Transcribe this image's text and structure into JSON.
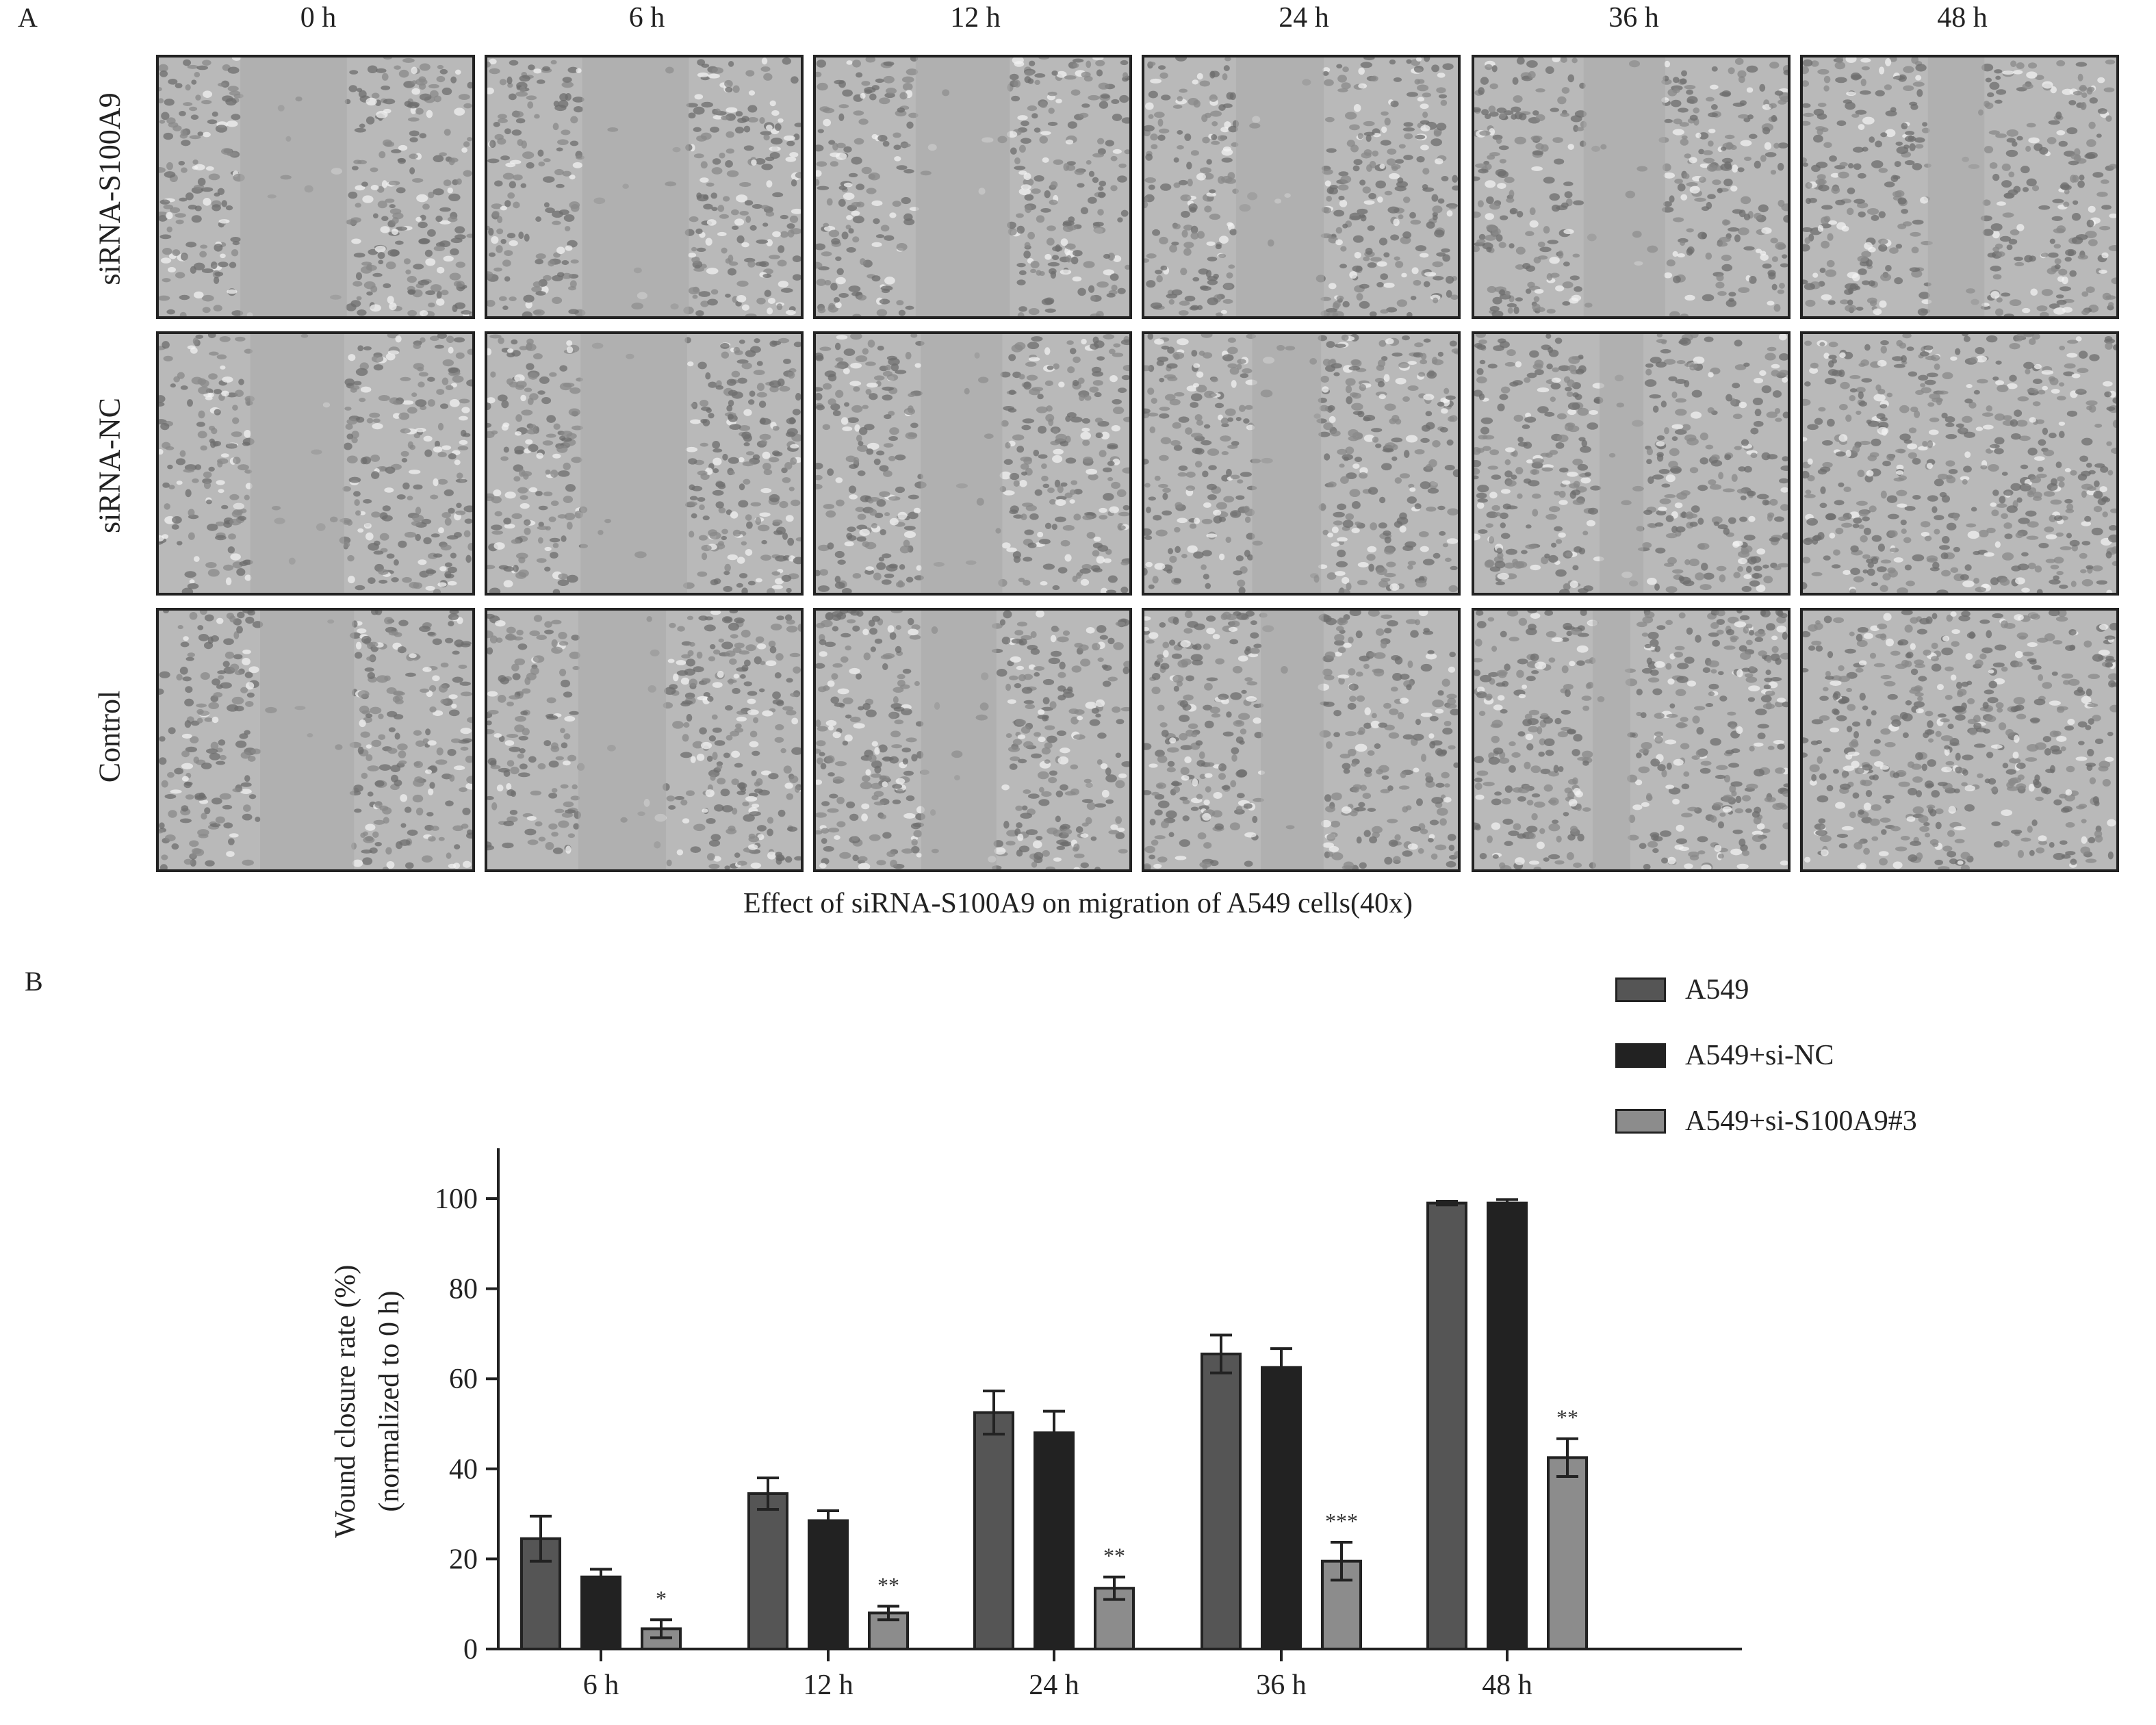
{
  "figure": {
    "panel_a_label": "A",
    "panel_b_label": "B",
    "columns": [
      "0 h",
      "6 h",
      "12 h",
      "24 h",
      "36 h",
      "48 h"
    ],
    "rows": [
      "siRNA-S100A9",
      "siRNA-NC",
      "Control"
    ],
    "caption": "Effect of siRNA-S100A9 on migration of A549 cells(40x)",
    "wound_gap_fraction": [
      [
        0.34,
        0.34,
        0.3,
        0.28,
        0.26,
        0.18
      ],
      [
        0.3,
        0.34,
        0.26,
        0.22,
        0.14,
        0.0
      ],
      [
        0.3,
        0.28,
        0.24,
        0.2,
        0.12,
        0.0
      ]
    ]
  },
  "chart_data": {
    "type": "bar",
    "categories": [
      "6 h",
      "12 h",
      "24 h",
      "36 h",
      "48 h"
    ],
    "ylabel_line1": "Wound closure rate (%)",
    "ylabel_line2": "(normalized to 0 h)",
    "ylim": [
      0,
      110
    ],
    "yticks": [
      0,
      20,
      40,
      60,
      80,
      100
    ],
    "legend_position": "top-right",
    "series": [
      {
        "name": "A549",
        "color": "#555555",
        "values": [
          24.5,
          34.5,
          52.5,
          65.5,
          99.0
        ],
        "errors": [
          5.0,
          3.5,
          4.8,
          4.2,
          0.4
        ],
        "significance": [
          "",
          "",
          "",
          "",
          ""
        ]
      },
      {
        "name": "A549+si-NC",
        "color": "#222222",
        "values": [
          16.0,
          28.5,
          48.0,
          62.5,
          99.0
        ],
        "errors": [
          1.7,
          2.2,
          4.8,
          4.2,
          0.8
        ],
        "significance": [
          "",
          "",
          "",
          "",
          ""
        ]
      },
      {
        "name": "A549+si-S100A9#3",
        "color": "#8c8c8c",
        "values": [
          4.5,
          8.0,
          13.5,
          19.5,
          42.5
        ],
        "errors": [
          2.0,
          1.5,
          2.5,
          4.2,
          4.2
        ],
        "significance": [
          "*",
          "**",
          "**",
          "***",
          "**"
        ]
      }
    ]
  }
}
